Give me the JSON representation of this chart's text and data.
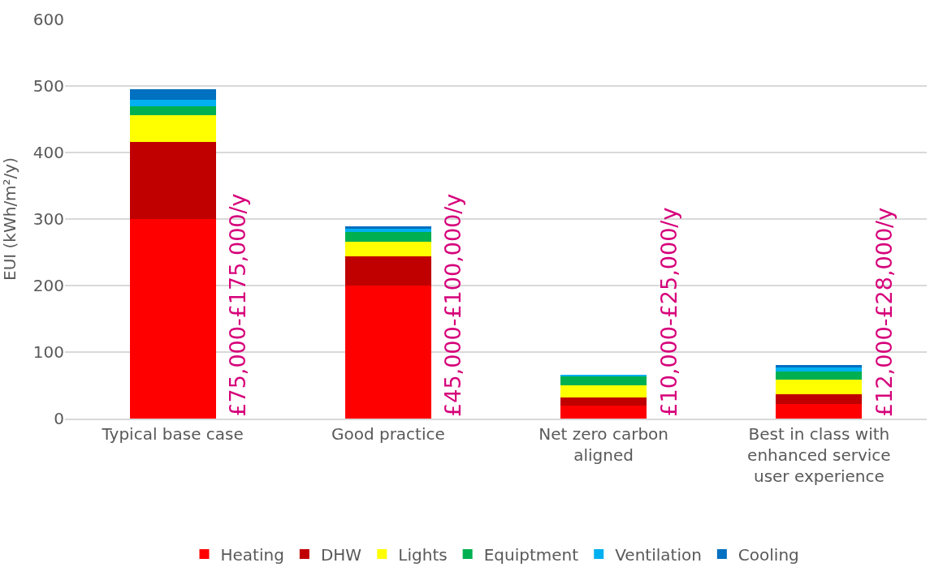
{
  "chart_data": {
    "type": "bar",
    "stacked": true,
    "ylabel": "EUI (kWh/m²/y)",
    "categories": [
      "Typical base case",
      "Good practice",
      "Net zero carbon\naligned",
      "Best in class with\nenhanced service\nuser experience"
    ],
    "series": [
      {
        "name": "Heating",
        "color": "#ff0000",
        "values": [
          300,
          200,
          19,
          22
        ]
      },
      {
        "name": "DHW",
        "color": "#c00000",
        "values": [
          116,
          44,
          13,
          15
        ]
      },
      {
        "name": "Lights",
        "color": "#ffff00",
        "values": [
          40,
          22,
          18,
          21
        ]
      },
      {
        "name": "Equiptment",
        "color": "#00b050",
        "values": [
          13,
          14,
          14,
          13
        ]
      },
      {
        "name": "Ventilation",
        "color": "#00b0f0",
        "values": [
          10,
          5,
          2,
          6
        ]
      },
      {
        "name": "Cooling",
        "color": "#0070c0",
        "values": [
          16,
          4,
          0,
          3
        ]
      }
    ],
    "ylim": [
      0,
      600
    ],
    "yticks": [
      0,
      100,
      200,
      300,
      400,
      500,
      600
    ],
    "grid": "y",
    "legend": "bottom",
    "annotations": [
      "£75,000-£175,000/y",
      "£45,000-£100,000/y",
      "£10,000-£25,000/y",
      "£12,000-£28,000/y"
    ]
  }
}
